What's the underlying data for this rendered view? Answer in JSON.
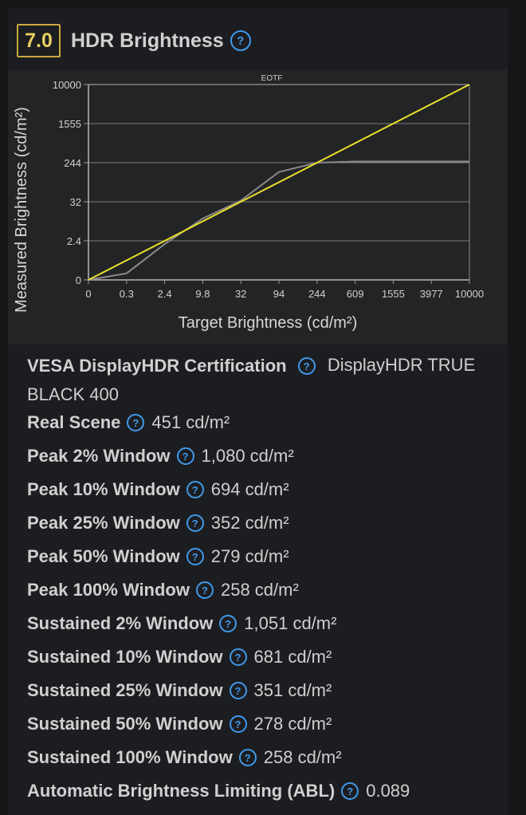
{
  "header": {
    "score": "7.0",
    "title": "HDR Brightness"
  },
  "chart_data": {
    "type": "line",
    "title": "EOTF",
    "xlabel": "Target Brightness (cd/m²)",
    "ylabel": "Measured Brightness (cd/m²)",
    "x_tick_labels": [
      "0",
      "0.3",
      "2.4",
      "9.8",
      "32",
      "94",
      "244",
      "609",
      "1555",
      "3977",
      "10000"
    ],
    "y_tick_labels": [
      "0",
      "2.4",
      "32",
      "244",
      "1555",
      "10000"
    ],
    "grid": true,
    "colors": {
      "target_line": "#e8e02a",
      "measured_line": "#8a8a8a"
    },
    "series": [
      {
        "role": "target",
        "x": [
          "0",
          "10000"
        ],
        "y": [
          "0",
          "10000"
        ]
      },
      {
        "role": "measured",
        "x": [
          "0",
          "0.3",
          "2.4",
          "9.8",
          "32",
          "94",
          "244",
          "609",
          "1555",
          "3977",
          "10000"
        ],
        "y": [
          "0",
          "0.4",
          "2.2",
          "10.5",
          "34",
          "150",
          "244",
          "258",
          "258",
          "258",
          "258"
        ]
      }
    ]
  },
  "specs": [
    {
      "label": "VESA DisplayHDR Certification",
      "value": "DisplayHDR TRUE BLACK 400"
    },
    {
      "label": "Real Scene",
      "value": "451 cd/m²"
    },
    {
      "label": "Peak 2% Window",
      "value": "1,080 cd/m²"
    },
    {
      "label": "Peak 10% Window",
      "value": "694 cd/m²"
    },
    {
      "label": "Peak 25% Window",
      "value": "352 cd/m²"
    },
    {
      "label": "Peak 50% Window",
      "value": "279 cd/m²"
    },
    {
      "label": "Peak 100% Window",
      "value": "258 cd/m²"
    },
    {
      "label": "Sustained 2% Window",
      "value": "1,051 cd/m²"
    },
    {
      "label": "Sustained 10% Window",
      "value": "681 cd/m²"
    },
    {
      "label": "Sustained 25% Window",
      "value": "351 cd/m²"
    },
    {
      "label": "Sustained 50% Window",
      "value": "278 cd/m²"
    },
    {
      "label": "Sustained 100% Window",
      "value": "258 cd/m²"
    },
    {
      "label": "Automatic Brightness Limiting (ABL)",
      "value": "0.089"
    }
  ]
}
